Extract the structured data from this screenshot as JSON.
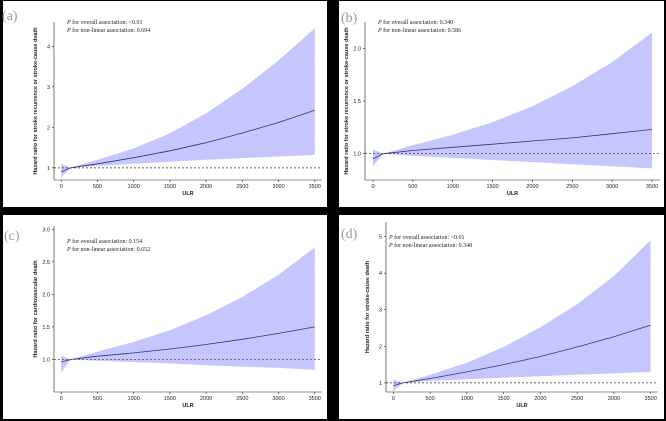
{
  "chart_data": [
    {
      "type": "line",
      "panel_label": "(a)",
      "annotation_lines": [
        {
          "p": "P",
          "text": " for overall  association: <0.01"
        },
        {
          "p": "P",
          "text": " for non-linear association: 0.694"
        }
      ],
      "xlabel": "ULR",
      "ylabel": "Hazard ratio for stroke recurrence or stroke-cause death",
      "xlim": [
        -100,
        3600
      ],
      "ylim": [
        0.7,
        4.6
      ],
      "xticks": [
        0,
        500,
        1000,
        1500,
        2000,
        2500,
        3000,
        3500
      ],
      "yticks": [
        {
          "v": 1,
          "label": "1"
        },
        {
          "v": 2,
          "label": "2"
        },
        {
          "v": 3,
          "label": "3"
        },
        {
          "v": 4,
          "label": "4"
        }
      ],
      "reference_y": 1,
      "x": [
        0,
        130,
        500,
        1000,
        1500,
        2000,
        2500,
        3000,
        3500
      ],
      "hr": [
        0.9,
        1.0,
        1.1,
        1.25,
        1.42,
        1.62,
        1.86,
        2.12,
        2.42
      ],
      "lower": [
        0.76,
        1.0,
        1.05,
        1.1,
        1.15,
        1.2,
        1.24,
        1.28,
        1.32
      ],
      "upper": [
        1.1,
        1.0,
        1.2,
        1.48,
        1.85,
        2.35,
        2.95,
        3.65,
        4.45
      ]
    },
    {
      "type": "line",
      "panel_label": "(b)",
      "annotation_lines": [
        {
          "p": "P",
          "text": " for overall  association: 0.340"
        },
        {
          "p": "P",
          "text": " for non-linear association: 0.586"
        }
      ],
      "xlabel": "ULR",
      "ylabel": "Hazard ratio for stroke recurrence or stroke-cause death",
      "xlim": [
        -100,
        3600
      ],
      "ylim": [
        0.75,
        2.25
      ],
      "xticks": [
        0,
        500,
        1000,
        1500,
        2000,
        2500,
        3000,
        3500
      ],
      "yticks": [
        {
          "v": 1.0,
          "label": "1.0"
        },
        {
          "v": 1.5,
          "label": "1.5"
        },
        {
          "v": 2.0,
          "label": "2.0"
        }
      ],
      "reference_y": 1.0,
      "x": [
        0,
        130,
        500,
        1000,
        1500,
        2000,
        2500,
        3000,
        3500
      ],
      "hr": [
        0.95,
        1.0,
        1.03,
        1.06,
        1.09,
        1.12,
        1.15,
        1.19,
        1.23
      ],
      "lower": [
        0.88,
        1.0,
        0.98,
        0.96,
        0.94,
        0.92,
        0.9,
        0.88,
        0.86
      ],
      "upper": [
        1.04,
        1.0,
        1.08,
        1.18,
        1.3,
        1.45,
        1.64,
        1.87,
        2.15
      ]
    },
    {
      "type": "line",
      "panel_label": "(c)",
      "annotation_lines": [
        {
          "p": "P",
          "text": " for overall  association: 0.154"
        },
        {
          "p": "P",
          "text": " for non-linear association: 0.652"
        }
      ],
      "xlabel": "ULR",
      "ylabel": "Hazard ratio for cardiovascular death",
      "xlim": [
        -100,
        3600
      ],
      "ylim": [
        0.5,
        3.05
      ],
      "xticks": [
        0,
        500,
        1000,
        1500,
        2000,
        2500,
        3000,
        3500
      ],
      "yticks": [
        {
          "v": 1.0,
          "label": "1.0"
        },
        {
          "v": 1.5,
          "label": "1.5"
        },
        {
          "v": 2.0,
          "label": "2.0"
        },
        {
          "v": 2.5,
          "label": "2.5"
        },
        {
          "v": 3.0,
          "label": "3.0"
        }
      ],
      "reference_y": 1.0,
      "x": [
        0,
        130,
        500,
        1000,
        1500,
        2000,
        2500,
        3000,
        3500
      ],
      "hr": [
        0.96,
        1.0,
        1.05,
        1.1,
        1.16,
        1.23,
        1.31,
        1.4,
        1.5
      ],
      "lower": [
        0.8,
        1.0,
        0.98,
        0.96,
        0.94,
        0.91,
        0.89,
        0.87,
        0.84
      ],
      "upper": [
        1.06,
        1.0,
        1.12,
        1.27,
        1.45,
        1.68,
        1.96,
        2.3,
        2.72
      ]
    },
    {
      "type": "line",
      "panel_label": "(d)",
      "annotation_lines": [
        {
          "p": "P",
          "text": " for overall  association: <0.01"
        },
        {
          "p": "P",
          "text": " for non-linear association: 0.348"
        }
      ],
      "xlabel": "ULR",
      "ylabel": "Hazard ratio for stroke-cause death",
      "xlim": [
        -100,
        3600
      ],
      "ylim": [
        0.75,
        5.4
      ],
      "xticks": [
        0,
        500,
        1000,
        1500,
        2000,
        2500,
        3000,
        3500
      ],
      "yticks": [
        {
          "v": 1,
          "label": "1"
        },
        {
          "v": 2,
          "label": "2"
        },
        {
          "v": 3,
          "label": "3"
        },
        {
          "v": 4,
          "label": "4"
        },
        {
          "v": 5,
          "label": "5"
        }
      ],
      "reference_y": 1,
      "x": [
        0,
        130,
        500,
        1000,
        1500,
        2000,
        2500,
        3000,
        3500
      ],
      "hr": [
        0.92,
        1.0,
        1.12,
        1.3,
        1.5,
        1.72,
        1.98,
        2.26,
        2.58
      ],
      "lower": [
        0.78,
        1.0,
        1.05,
        1.1,
        1.14,
        1.18,
        1.22,
        1.26,
        1.3
      ],
      "upper": [
        1.1,
        1.0,
        1.22,
        1.55,
        1.98,
        2.52,
        3.15,
        3.92,
        4.9
      ]
    }
  ]
}
